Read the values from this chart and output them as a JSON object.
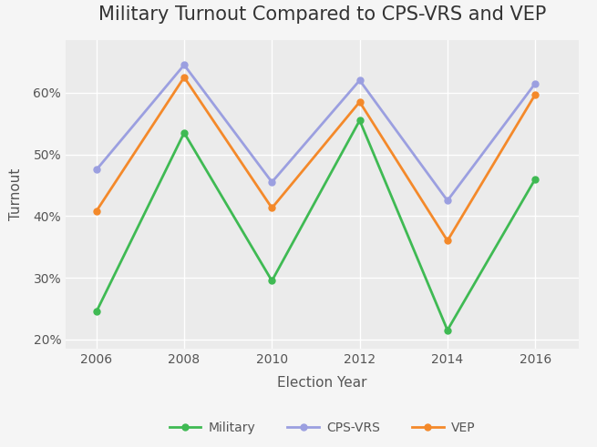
{
  "title": "Military Turnout Compared to CPS-VRS and VEP",
  "xlabel": "Election Year",
  "ylabel": "Turnout",
  "years": [
    2006,
    2008,
    2010,
    2012,
    2014,
    2016
  ],
  "military": [
    0.245,
    0.535,
    0.295,
    0.555,
    0.215,
    0.46
  ],
  "cps_vrs": [
    0.475,
    0.645,
    0.455,
    0.62,
    0.425,
    0.615
  ],
  "vep": [
    0.408,
    0.625,
    0.413,
    0.585,
    0.36,
    0.597
  ],
  "military_color": "#3fba53",
  "cps_vrs_color": "#9b9fe0",
  "vep_color": "#f4892a",
  "ylim": [
    0.185,
    0.685
  ],
  "yticks": [
    0.2,
    0.3,
    0.4,
    0.5,
    0.6
  ],
  "figure_bg": "#f5f5f5",
  "axes_bg": "#ebebeb",
  "grid_color": "#ffffff",
  "title_fontsize": 15,
  "axis_label_fontsize": 11,
  "tick_fontsize": 10,
  "legend_fontsize": 10,
  "line_width": 2.0,
  "marker": "o",
  "marker_size": 5,
  "tick_color": "#555555",
  "title_color": "#333333",
  "label_color": "#555555"
}
